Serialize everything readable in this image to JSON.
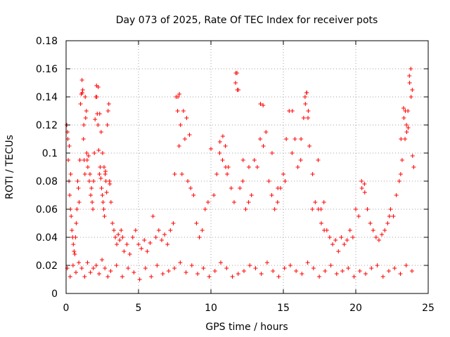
{
  "chart_data": {
    "type": "scatter",
    "title": "Day 073 of 2025, Rate Of TEC Index for receiver pots",
    "xlabel": "GPS time / hours",
    "ylabel": "ROTI / TECUs",
    "xlim": [
      0,
      25
    ],
    "ylim": [
      0,
      0.18
    ],
    "xticks": [
      0,
      5,
      10,
      15,
      20,
      25
    ],
    "xtick_labels": [
      "0",
      "5",
      "10",
      "15",
      "20",
      "25"
    ],
    "yticks": [
      0,
      0.02,
      0.04,
      0.06,
      0.08,
      0.1,
      0.12,
      0.14,
      0.16,
      0.18
    ],
    "ytick_labels": [
      "0",
      "0.02",
      "0.04",
      "0.06",
      "0.08",
      "0.1",
      "0.12",
      "0.14",
      "0.16",
      "0.18"
    ],
    "grid": true,
    "marker": "plus",
    "series": [
      {
        "color": "#ff0000",
        "x": [
          0.05,
          0.1,
          0.15,
          0.2,
          0.25,
          0.3,
          0.35,
          0.4,
          0.45,
          0.5,
          0.55,
          0.6,
          0.65,
          0.7,
          0.75,
          0.8,
          0.85,
          0.9,
          0.95,
          1.0,
          1.05,
          1.1,
          1.15,
          1.2,
          1.25,
          1.3,
          1.35,
          1.4,
          1.45,
          1.5,
          1.55,
          1.6,
          1.65,
          1.7,
          1.75,
          1.8,
          1.85,
          1.9,
          1.95,
          2.0,
          2.05,
          2.1,
          2.15,
          2.2,
          2.25,
          2.3,
          2.35,
          2.4,
          2.45,
          2.5,
          2.55,
          2.6,
          2.65,
          2.7,
          2.75,
          2.8,
          2.85,
          2.9,
          2.95,
          3.0,
          3.1,
          3.2,
          3.3,
          3.4,
          3.5,
          3.6,
          3.7,
          3.8,
          3.9,
          4.0,
          4.2,
          4.4,
          4.6,
          4.8,
          5.0,
          5.2,
          5.4,
          5.6,
          5.8,
          6.0,
          6.2,
          6.4,
          6.6,
          6.8,
          7.0,
          7.2,
          7.4,
          7.5,
          7.6,
          7.7,
          7.8,
          7.9,
          8.0,
          8.1,
          8.2,
          8.4,
          8.6,
          8.8,
          9.0,
          9.2,
          9.4,
          9.6,
          9.8,
          10.0,
          10.2,
          10.4,
          10.6,
          10.8,
          11.0,
          11.2,
          11.4,
          11.6,
          11.7,
          11.8,
          11.9,
          12.0,
          12.2,
          12.4,
          12.6,
          12.8,
          13.0,
          13.2,
          13.4,
          13.6,
          13.8,
          14.0,
          14.2,
          14.4,
          14.6,
          14.8,
          15.0,
          15.2,
          15.4,
          15.6,
          15.8,
          16.0,
          16.2,
          16.4,
          16.5,
          16.6,
          16.7,
          16.8,
          17.0,
          17.2,
          17.4,
          17.6,
          17.8,
          18.0,
          18.2,
          18.4,
          18.6,
          18.8,
          19.0,
          19.2,
          19.4,
          19.6,
          19.8,
          20.0,
          20.2,
          20.4,
          20.6,
          20.8,
          21.0,
          21.2,
          21.4,
          21.6,
          21.8,
          22.0,
          22.2,
          22.4,
          22.6,
          22.8,
          23.0,
          23.1,
          23.2,
          23.3,
          23.4,
          23.5,
          23.6,
          23.7,
          23.8,
          23.9,
          24.0,
          0.12,
          0.22,
          0.32,
          1.12,
          1.22,
          1.32,
          1.42,
          2.12,
          2.22,
          2.32,
          2.42,
          2.52,
          2.62,
          2.72,
          3.02,
          7.72,
          7.82,
          8.32,
          8.52,
          10.62,
          10.82,
          11.02,
          11.12,
          11.72,
          11.82,
          12.22,
          12.62,
          13.42,
          13.62,
          14.22,
          14.62,
          15.12,
          15.62,
          16.22,
          16.52,
          16.62,
          16.72,
          17.02,
          17.42,
          17.62,
          17.82,
          20.42,
          20.62,
          22.32,
          23.12,
          23.32,
          23.42,
          23.52,
          23.62,
          23.72,
          23.82,
          23.92,
          0.08,
          0.28,
          0.48,
          0.68,
          0.88,
          1.08,
          1.28,
          1.48,
          1.68,
          1.88,
          2.08,
          2.28,
          2.48,
          2.68,
          2.88,
          3.08,
          3.48,
          3.88,
          4.28,
          4.68,
          5.08,
          5.48,
          5.88,
          6.28,
          6.68,
          7.08,
          7.48,
          7.88,
          8.28,
          8.68,
          9.08,
          9.48,
          9.88,
          10.28,
          10.68,
          11.08,
          11.48,
          11.88,
          12.28,
          12.68,
          13.08,
          13.48,
          13.88,
          14.28,
          14.68,
          15.08,
          15.48,
          15.88,
          16.28,
          16.68,
          17.08,
          17.48,
          17.88,
          18.28,
          18.68,
          19.08,
          19.48,
          19.88,
          20.28,
          20.68,
          21.08,
          21.48,
          21.88,
          22.28,
          22.68,
          23.08,
          23.48,
          23.88
        ],
        "y": [
          0.12,
          0.115,
          0.095,
          0.08,
          0.07,
          0.06,
          0.055,
          0.045,
          0.04,
          0.035,
          0.03,
          0.028,
          0.04,
          0.05,
          0.06,
          0.08,
          0.075,
          0.065,
          0.095,
          0.135,
          0.142,
          0.152,
          0.145,
          0.11,
          0.095,
          0.085,
          0.125,
          0.13,
          0.095,
          0.09,
          0.098,
          0.08,
          0.085,
          0.07,
          0.075,
          0.065,
          0.06,
          0.08,
          0.1,
          0.124,
          0.14,
          0.148,
          0.128,
          0.12,
          0.102,
          0.085,
          0.09,
          0.082,
          0.075,
          0.07,
          0.065,
          0.06,
          0.055,
          0.085,
          0.08,
          0.072,
          0.12,
          0.13,
          0.135,
          0.08,
          0.065,
          0.05,
          0.045,
          0.04,
          0.035,
          0.042,
          0.038,
          0.045,
          0.04,
          0.03,
          0.035,
          0.028,
          0.04,
          0.045,
          0.035,
          0.032,
          0.038,
          0.03,
          0.036,
          0.055,
          0.04,
          0.045,
          0.038,
          0.042,
          0.035,
          0.045,
          0.05,
          0.085,
          0.14,
          0.13,
          0.105,
          0.12,
          0.085,
          0.13,
          0.11,
          0.08,
          0.075,
          0.07,
          0.05,
          0.04,
          0.045,
          0.06,
          0.065,
          0.103,
          0.07,
          0.085,
          0.1,
          0.095,
          0.105,
          0.09,
          0.075,
          0.065,
          0.15,
          0.157,
          0.145,
          0.075,
          0.08,
          0.06,
          0.065,
          0.07,
          0.095,
          0.09,
          0.11,
          0.134,
          0.115,
          0.08,
          0.07,
          0.06,
          0.065,
          0.075,
          0.085,
          0.11,
          0.13,
          0.1,
          0.11,
          0.09,
          0.095,
          0.125,
          0.14,
          0.143,
          0.125,
          0.105,
          0.06,
          0.065,
          0.095,
          0.06,
          0.065,
          0.045,
          0.04,
          0.035,
          0.038,
          0.03,
          0.04,
          0.035,
          0.038,
          0.045,
          0.04,
          0.06,
          0.055,
          0.08,
          0.078,
          0.06,
          0.05,
          0.045,
          0.04,
          0.038,
          0.042,
          0.045,
          0.05,
          0.06,
          0.055,
          0.07,
          0.08,
          0.085,
          0.095,
          0.132,
          0.11,
          0.12,
          0.13,
          0.155,
          0.16,
          0.145,
          0.09,
          0.11,
          0.105,
          0.085,
          0.143,
          0.12,
          0.14,
          0.1,
          0.14,
          0.147,
          0.128,
          0.115,
          0.1,
          0.09,
          0.087,
          0.078,
          0.14,
          0.142,
          0.125,
          0.113,
          0.108,
          0.112,
          0.09,
          0.085,
          0.157,
          0.145,
          0.095,
          0.09,
          0.135,
          0.105,
          0.1,
          0.075,
          0.08,
          0.13,
          0.11,
          0.135,
          0.143,
          0.13,
          0.085,
          0.06,
          0.05,
          0.045,
          0.075,
          0.072,
          0.055,
          0.11,
          0.125,
          0.13,
          0.115,
          0.118,
          0.15,
          0.14,
          0.098,
          0.018,
          0.012,
          0.02,
          0.015,
          0.022,
          0.018,
          0.012,
          0.022,
          0.015,
          0.018,
          0.02,
          0.014,
          0.024,
          0.018,
          0.012,
          0.016,
          0.02,
          0.012,
          0.018,
          0.015,
          0.01,
          0.018,
          0.012,
          0.02,
          0.014,
          0.016,
          0.018,
          0.022,
          0.015,
          0.02,
          0.014,
          0.018,
          0.012,
          0.016,
          0.022,
          0.018,
          0.012,
          0.014,
          0.016,
          0.02,
          0.018,
          0.014,
          0.022,
          0.016,
          0.012,
          0.018,
          0.02,
          0.016,
          0.014,
          0.022,
          0.018,
          0.012,
          0.016,
          0.02,
          0.014,
          0.016,
          0.018,
          0.012,
          0.016,
          0.014,
          0.018,
          0.02,
          0.012,
          0.016,
          0.018,
          0.014,
          0.02,
          0.016
        ]
      }
    ]
  }
}
